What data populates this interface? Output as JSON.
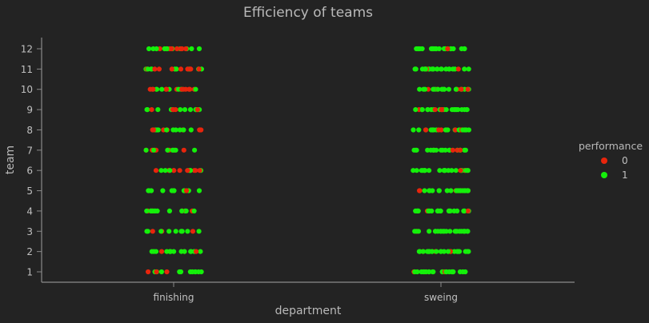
{
  "chart_data": {
    "type": "scatter",
    "subtype": "categorical strip plot",
    "title": "Efficiency of teams",
    "xlabel": "department",
    "ylabel": "team",
    "categories": [
      "finishing",
      "sweing"
    ],
    "y_ticks": [
      1,
      2,
      3,
      4,
      5,
      6,
      7,
      8,
      9,
      10,
      11,
      12
    ],
    "ylim": [
      0.5,
      12.5
    ],
    "grid": false,
    "legend": {
      "title": "performance",
      "placement": "right",
      "entries": [
        {
          "label": "0",
          "color": "#e8250c"
        },
        {
          "label": "1",
          "color": "#14f00a"
        }
      ]
    },
    "series": [
      {
        "name": "0",
        "color": "#e8250c",
        "points_by_category": {
          "finishing": {
            "1": 3,
            "2": 3,
            "3": 3,
            "4": 4,
            "5": 2,
            "6": 10,
            "7": 8,
            "8": 8,
            "9": 6,
            "10": 12,
            "11": 9,
            "12": 9
          },
          "sweing": {
            "1": 3,
            "2": 4,
            "3": 1,
            "4": 2,
            "5": 5,
            "6": 3,
            "7": 4,
            "8": 6,
            "9": 4,
            "10": 5,
            "11": 3,
            "12": 2
          }
        }
      },
      {
        "name": "1",
        "color": "#14f00a",
        "points_by_category": {
          "finishing": {
            "1": 11,
            "2": 14,
            "3": 9,
            "4": 12,
            "5": 10,
            "6": 7,
            "7": 7,
            "8": 9,
            "9": 11,
            "10": 8,
            "11": 9,
            "12": 11
          },
          "sweing": {
            "1": 24,
            "2": 22,
            "3": 23,
            "4": 20,
            "5": 19,
            "6": 21,
            "7": 18,
            "8": 18,
            "9": 20,
            "10": 19,
            "11": 22,
            "12": 24
          }
        }
      }
    ]
  }
}
